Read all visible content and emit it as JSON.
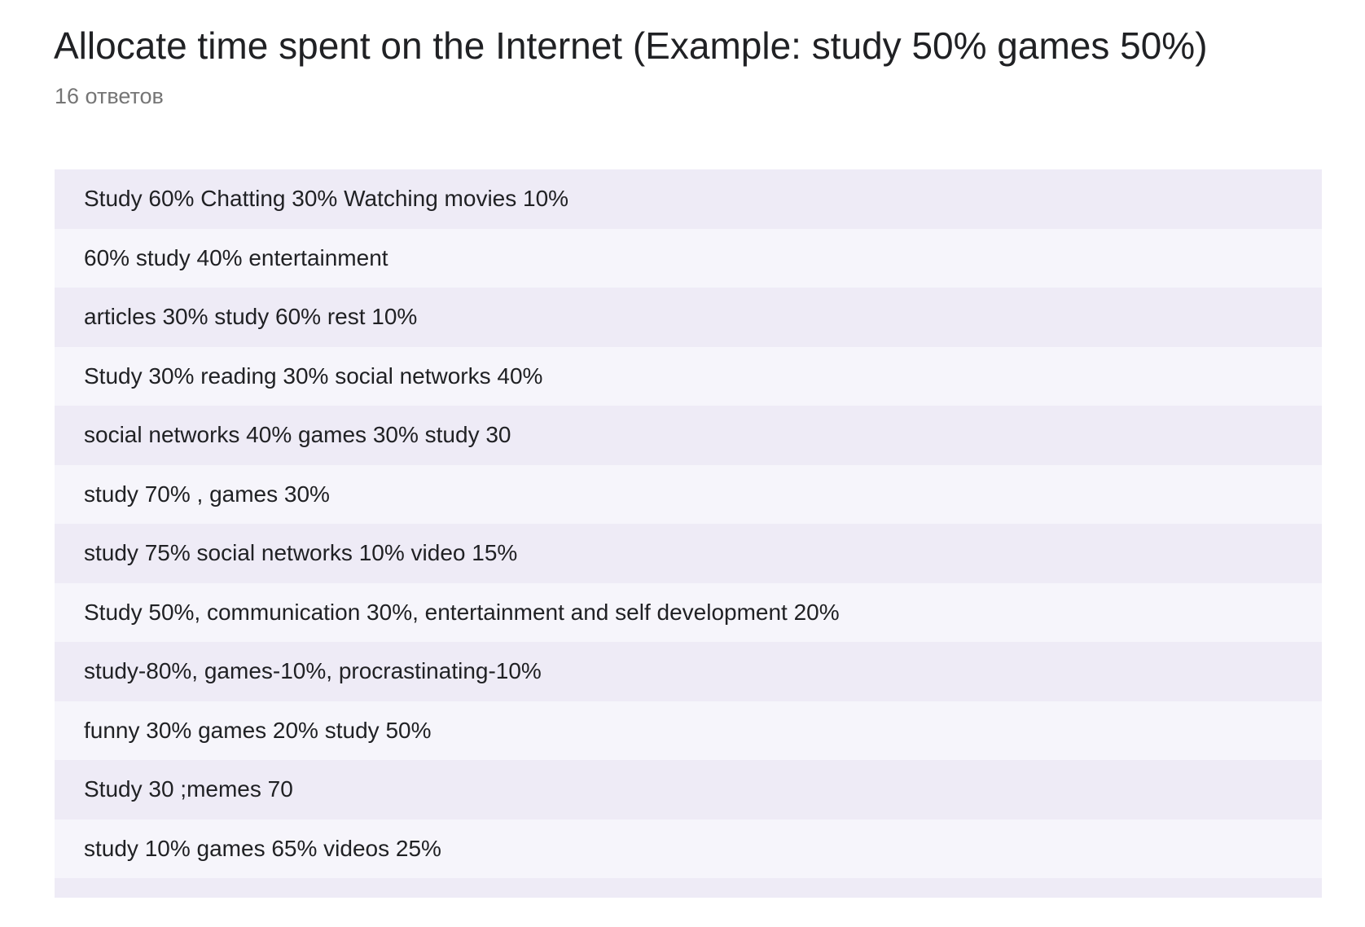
{
  "question": {
    "title": "Allocate time spent on the Internet (Example: study 50% games 50%)",
    "response_count": "16 ответов"
  },
  "responses": [
    "Study 60% Chatting 30% Watching movies 10%",
    "60% study 40% entertainment",
    "articles 30% study 60% rest 10%",
    "Study 30% reading 30% social networks 40%",
    "social networks 40% games 30% study 30",
    "study 70% , games 30%",
    "study 75% social networks 10% video 15%",
    "Study 50%, communication 30%, entertainment and self development 20%",
    "study-80%, games-10%, procrastinating-10%",
    "funny 30% games 20% study 50%",
    "Study 30 ;memes 70",
    "study 10% games 65% videos 25%",
    ""
  ],
  "colors": {
    "row_odd": "#eeebf6",
    "row_even": "#f6f5fb",
    "text": "#202124",
    "muted": "#757575"
  }
}
